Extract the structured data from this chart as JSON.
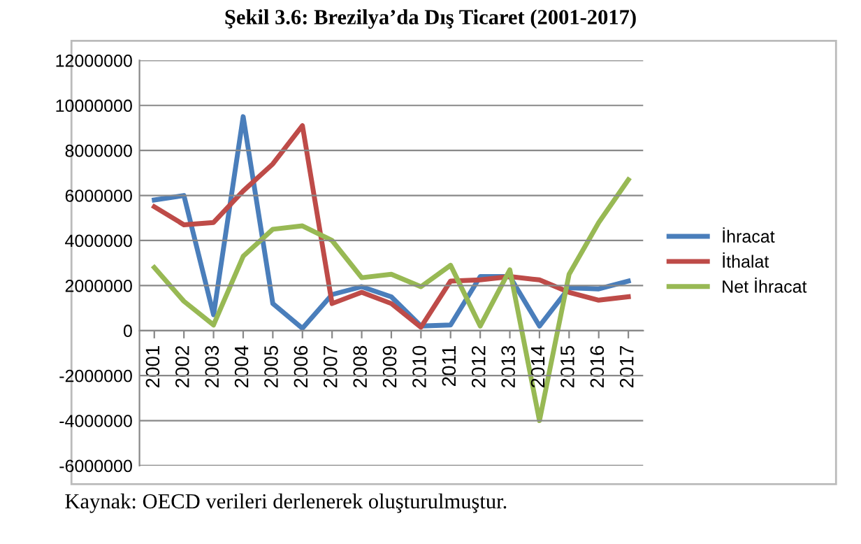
{
  "chart_data": {
    "type": "line",
    "title": "Şekil 3.6: Brezilya’da Dış Ticaret (2001-2017)",
    "categories": [
      "2001",
      "2002",
      "2003",
      "2004",
      "2005",
      "2006",
      "2007",
      "2008",
      "2009",
      "2010",
      "2011",
      "2012",
      "2013",
      "2014",
      "2015",
      "2016",
      "2017"
    ],
    "series": [
      {
        "name": "İhracat",
        "color": "#4a7ebb",
        "values": [
          5800000,
          6000000,
          700000,
          9500000,
          1200000,
          100000,
          1600000,
          1950000,
          1500000,
          200000,
          250000,
          2400000,
          2400000,
          200000,
          1900000,
          1850000,
          2200000
        ]
      },
      {
        "name": "İthalat",
        "color": "#be4b48",
        "values": [
          5500000,
          4700000,
          4800000,
          6200000,
          7400000,
          9100000,
          1200000,
          1700000,
          1200000,
          150000,
          2200000,
          2250000,
          2400000,
          2250000,
          1700000,
          1350000,
          1500000
        ]
      },
      {
        "name": "Net İhracat",
        "color": "#98b954",
        "values": [
          2800000,
          1300000,
          250000,
          3300000,
          4500000,
          4650000,
          4000000,
          2350000,
          2500000,
          1950000,
          2900000,
          200000,
          2700000,
          -4000000,
          2500000,
          4800000,
          6700000
        ]
      }
    ],
    "ylim": [
      -6000000,
      12000000
    ],
    "yticks": [
      -6000000,
      -4000000,
      -2000000,
      0,
      2000000,
      4000000,
      6000000,
      8000000,
      10000000,
      12000000
    ],
    "grid": "y",
    "legend": "right",
    "marker": "none",
    "line_style": "solid",
    "annotations": [
      "Kaynak: OECD verileri derlenerek oluşturulmuştur."
    ]
  }
}
